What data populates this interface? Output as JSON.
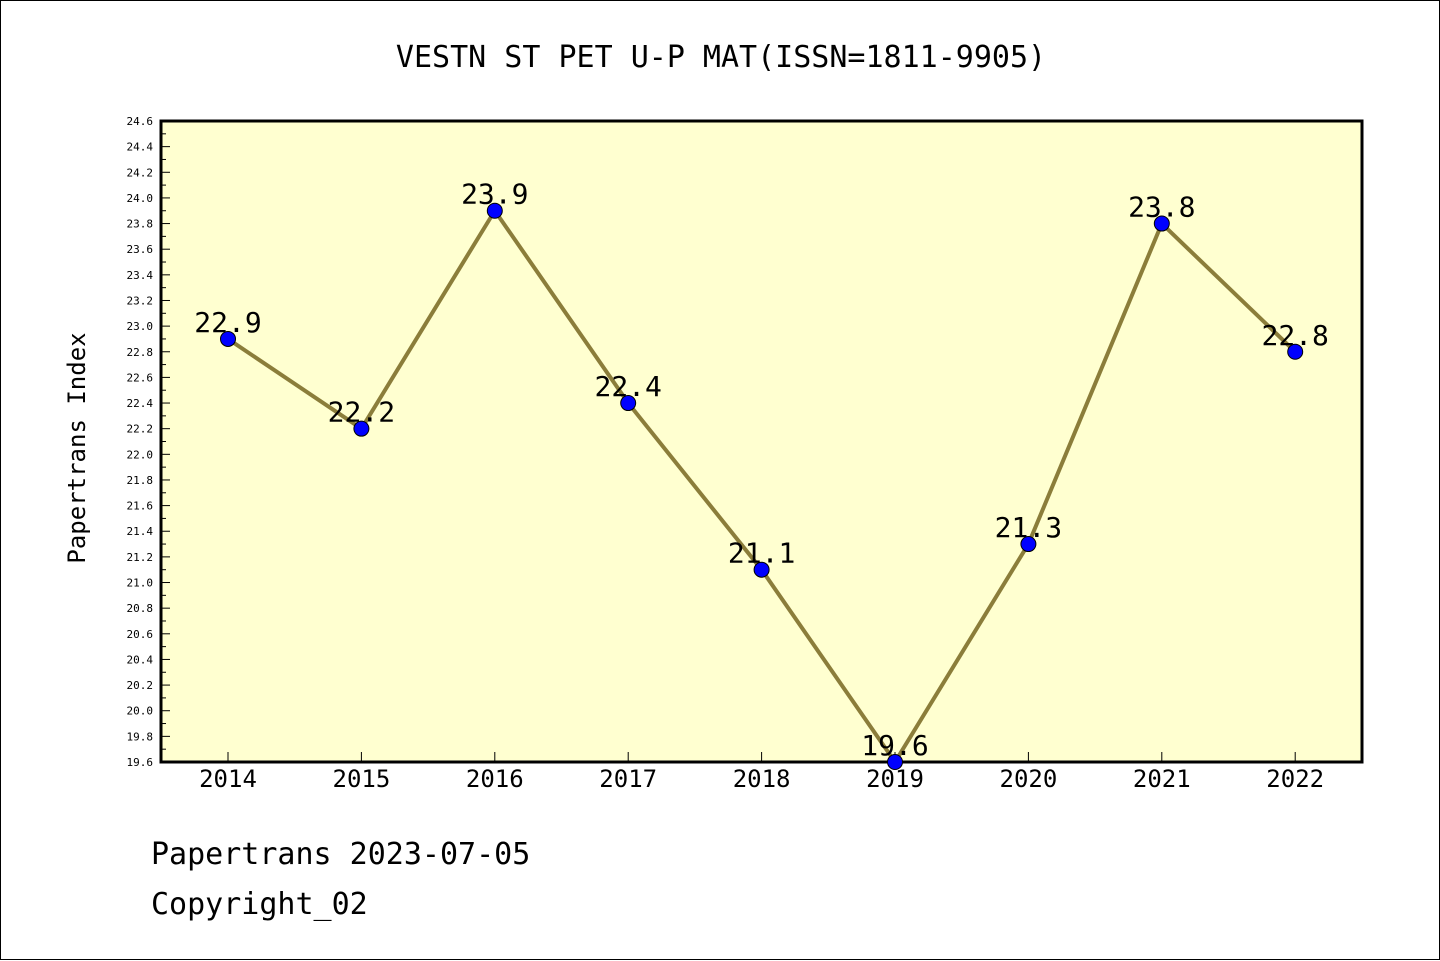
{
  "chart_data": {
    "type": "line",
    "title": "VESTN ST PET U-P MAT(ISSN=1811-9905)",
    "xlabel": "",
    "ylabel": "Papertrans Index",
    "categories": [
      "2014",
      "2015",
      "2016",
      "2017",
      "2018",
      "2019",
      "2020",
      "2021",
      "2022"
    ],
    "values": [
      22.9,
      22.2,
      23.9,
      22.4,
      21.1,
      19.6,
      21.3,
      23.8,
      22.8
    ],
    "data_labels": [
      "22.9",
      "22.2",
      "23.9",
      "22.4",
      "21.1",
      "19.6",
      "21.3",
      "23.8",
      "22.8"
    ],
    "ylim": [
      19.6,
      24.6
    ],
    "ytick_step": 0.2,
    "grid": false,
    "legend": "none",
    "colors": {
      "plot_background": "#ffffd0",
      "line": "#8b7d3a",
      "marker": "#0000ff"
    }
  },
  "footer": {
    "line1": "Papertrans 2023-07-05",
    "line2": "Copyright_02"
  }
}
